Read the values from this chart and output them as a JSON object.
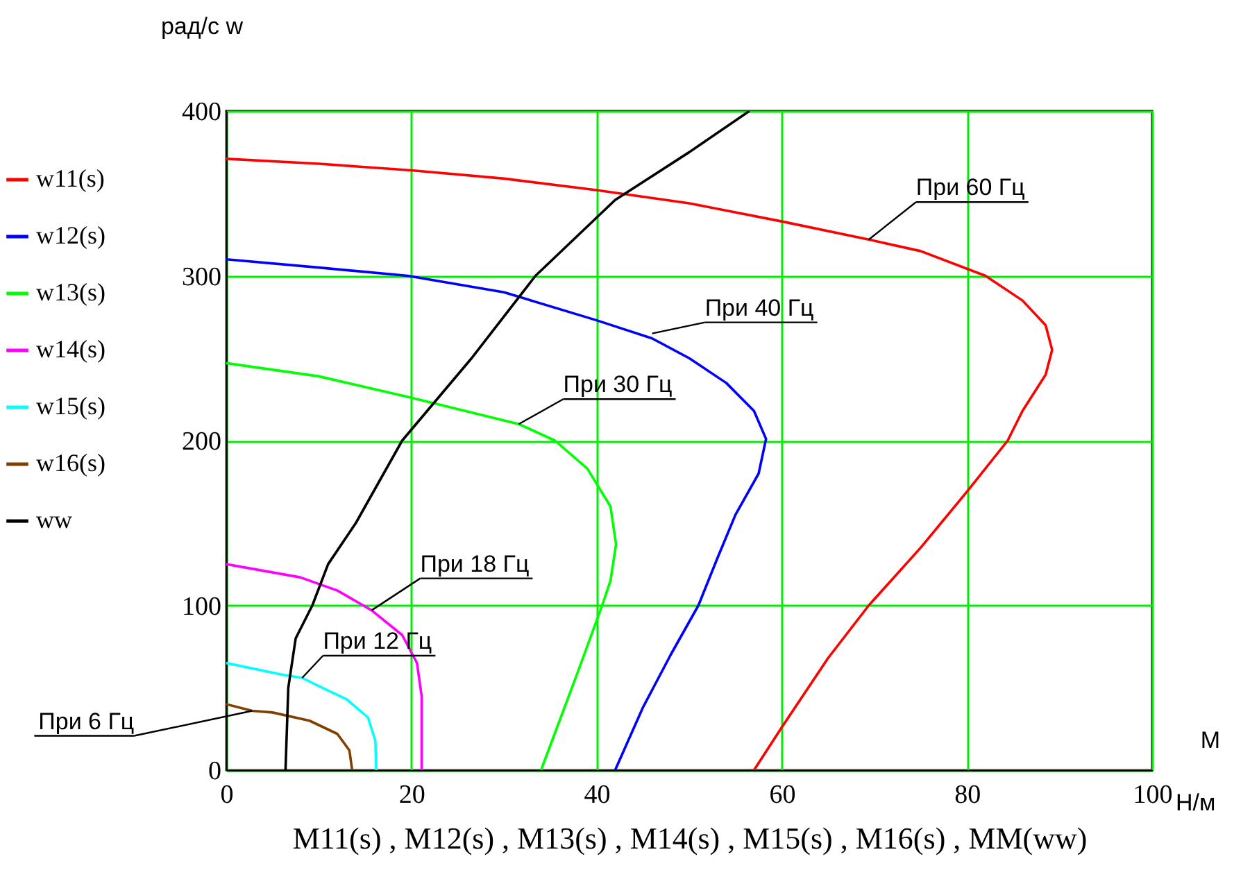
{
  "chart_data": {
    "type": "line",
    "xlabel": "M11(s) , M12(s) , M13(s) , M14(s) , M15(s) , M16(s) , MM(ww)",
    "ylabel": "рад/с w",
    "xlim": [
      0,
      100
    ],
    "xticks": [
      0,
      20,
      40,
      60,
      80,
      100
    ],
    "ylim": [
      0,
      400
    ],
    "yticks": [
      0,
      100,
      200,
      300,
      400
    ],
    "grid": true,
    "legend": "left",
    "marker": "none",
    "line_style": "solid",
    "series": [
      {
        "name": "w11(s)",
        "color": "#ff0000",
        "x": [
          0,
          10,
          20,
          30,
          40,
          50,
          60,
          69.4,
          75,
          82,
          86,
          88.5,
          89.2,
          88.5,
          86,
          84.4,
          80,
          75,
          69.4,
          65,
          60,
          57
        ],
        "values": [
          371,
          368,
          364,
          359,
          352,
          344,
          333,
          322,
          315,
          300,
          285,
          270,
          255,
          240,
          218,
          200,
          169,
          135,
          100,
          68,
          26,
          0
        ]
      },
      {
        "name": "w12(s)",
        "color": "#0000ff",
        "x": [
          0,
          10,
          19.6,
          30,
          40,
          46,
          50,
          54,
          57,
          58.3,
          57.5,
          55,
          53,
          51,
          48,
          45,
          42
        ],
        "values": [
          310,
          305,
          300,
          290,
          273,
          262,
          250,
          235,
          218,
          201,
          180,
          155,
          128,
          100,
          70,
          38,
          0
        ]
      },
      {
        "name": "w13(s)",
        "color": "#00ff00",
        "x": [
          0,
          10,
          20,
          31.6,
          35.5,
          39,
          41.5,
          42.1,
          41.5,
          40.6,
          38,
          36,
          34
        ],
        "values": [
          247,
          239,
          226,
          210,
          200,
          183,
          160,
          137,
          115,
          100,
          60,
          30,
          0
        ]
      },
      {
        "name": "w14(s)",
        "color": "#ff00ff",
        "x": [
          0,
          8,
          12,
          15.7,
          19,
          20.6,
          21.1,
          21.1
        ],
        "values": [
          125,
          117,
          109,
          97,
          82,
          65,
          45,
          0
        ]
      },
      {
        "name": "w15(s)",
        "color": "#00ffff",
        "x": [
          0,
          6,
          8.2,
          10,
          13,
          15.3,
          16.1,
          16.2
        ],
        "values": [
          65,
          58,
          56,
          51,
          43,
          32,
          18,
          0
        ]
      },
      {
        "name": "w16(s)",
        "color": "#804000",
        "x": [
          0,
          2.8,
          5,
          9,
          12,
          13.3,
          13.6
        ],
        "values": [
          40,
          36,
          35,
          30,
          22,
          12,
          0
        ]
      },
      {
        "name": "ww",
        "color": "#000000",
        "x": [
          6.4,
          6.7,
          7.5,
          9.3,
          11,
          14,
          19,
          26.5,
          33.4,
          42,
          50,
          56.5
        ],
        "values": [
          0,
          50,
          80,
          100,
          125,
          150,
          200,
          250,
          300,
          346,
          375,
          400
        ]
      }
    ],
    "annotations": [
      {
        "text": "При 60 Гц",
        "x": 69.4,
        "y": 322
      },
      {
        "text": "При 40 Гц",
        "x": 46,
        "y": 265
      },
      {
        "text": "При 30 Гц",
        "x": 31.6,
        "y": 210
      },
      {
        "text": "При 18 Гц",
        "x": 15.7,
        "y": 97
      },
      {
        "text": "При 12 Гц",
        "x": 8.2,
        "y": 56
      },
      {
        "text": "При 6 Гц",
        "x": 2.8,
        "y": 36
      },
      "M",
      "Н/м"
    ]
  }
}
